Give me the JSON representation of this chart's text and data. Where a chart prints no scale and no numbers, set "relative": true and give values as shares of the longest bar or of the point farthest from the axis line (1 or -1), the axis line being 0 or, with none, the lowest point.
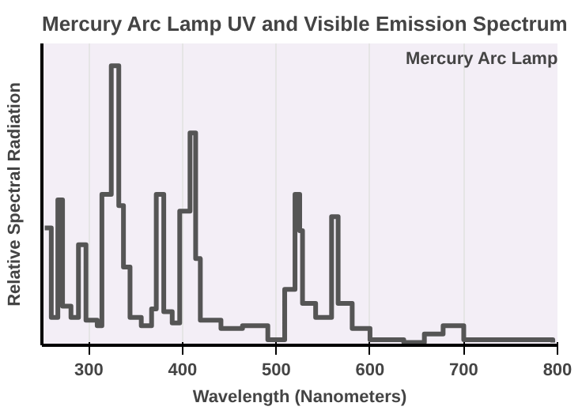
{
  "chart_data": {
    "type": "step",
    "title": "Mercury Arc Lamp UV and Visible Emission Spectrum",
    "xlabel": "Wavelength (Nanometers)",
    "ylabel": "Relative Spectral Radiation",
    "annotations": [
      "Mercury Arc Lamp"
    ],
    "relative": true,
    "xlim": [
      250,
      800
    ],
    "xticks": [
      300,
      400,
      500,
      600,
      700,
      800
    ],
    "grid": "x",
    "x": [
      253,
      260,
      267,
      272,
      281,
      289,
      297,
      309,
      314,
      324,
      332,
      337,
      344,
      356,
      367,
      372,
      380,
      389,
      397,
      408,
      414,
      419,
      441,
      464,
      491,
      509,
      520,
      525,
      528,
      542,
      559,
      566,
      581,
      600,
      636,
      658,
      678,
      700,
      795
    ],
    "series": [
      {
        "color": "#555555",
        "values": [
          0.42,
          0.1,
          0.52,
          0.14,
          0.1,
          0.36,
          0.09,
          0.07,
          0.54,
          1.0,
          0.5,
          0.28,
          0.1,
          0.07,
          0.13,
          0.54,
          0.12,
          0.08,
          0.48,
          0.76,
          0.31,
          0.09,
          0.06,
          0.07,
          0.02,
          0.2,
          0.54,
          0.41,
          0.15,
          0.1,
          0.46,
          0.15,
          0.06,
          0.02,
          0.01,
          0.04,
          0.07,
          0.02,
          0.01
        ]
      }
    ]
  }
}
